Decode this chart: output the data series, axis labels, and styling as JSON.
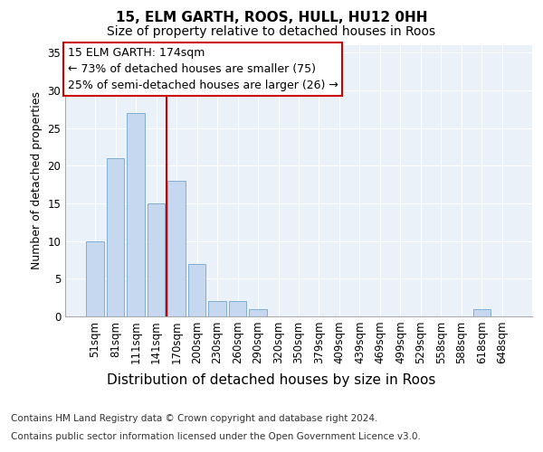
{
  "title1": "15, ELM GARTH, ROOS, HULL, HU12 0HH",
  "title2": "Size of property relative to detached houses in Roos",
  "xlabel": "Distribution of detached houses by size in Roos",
  "ylabel": "Number of detached properties",
  "categories": [
    "51sqm",
    "81sqm",
    "111sqm",
    "141sqm",
    "170sqm",
    "200sqm",
    "230sqm",
    "260sqm",
    "290sqm",
    "320sqm",
    "350sqm",
    "379sqm",
    "409sqm",
    "439sqm",
    "469sqm",
    "499sqm",
    "529sqm",
    "558sqm",
    "588sqm",
    "618sqm",
    "648sqm"
  ],
  "values": [
    10,
    21,
    27,
    15,
    18,
    7,
    2,
    2,
    1,
    0,
    0,
    0,
    0,
    0,
    0,
    0,
    0,
    0,
    0,
    1,
    0
  ],
  "bar_color": "#c5d8f0",
  "bar_edge_color": "#7fafd4",
  "vline_color": "#cc0000",
  "vline_x": 3.5,
  "annotation_line1": "15 ELM GARTH: 174sqm",
  "annotation_line2": "← 73% of detached houses are smaller (75)",
  "annotation_line3": "25% of semi-detached houses are larger (26) →",
  "annotation_box_color": "#ffffff",
  "annotation_box_edge": "#cc0000",
  "ylim": [
    0,
    36
  ],
  "yticks": [
    0,
    5,
    10,
    15,
    20,
    25,
    30,
    35
  ],
  "footer_line1": "Contains HM Land Registry data © Crown copyright and database right 2024.",
  "footer_line2": "Contains public sector information licensed under the Open Government Licence v3.0.",
  "plot_bg_color": "#eaf1f8",
  "fig_bg_color": "#ffffff",
  "title1_fontsize": 11,
  "title2_fontsize": 10,
  "ylabel_fontsize": 9,
  "xlabel_fontsize": 11,
  "tick_fontsize": 8.5,
  "annotation_fontsize": 9,
  "footer_fontsize": 7.5
}
